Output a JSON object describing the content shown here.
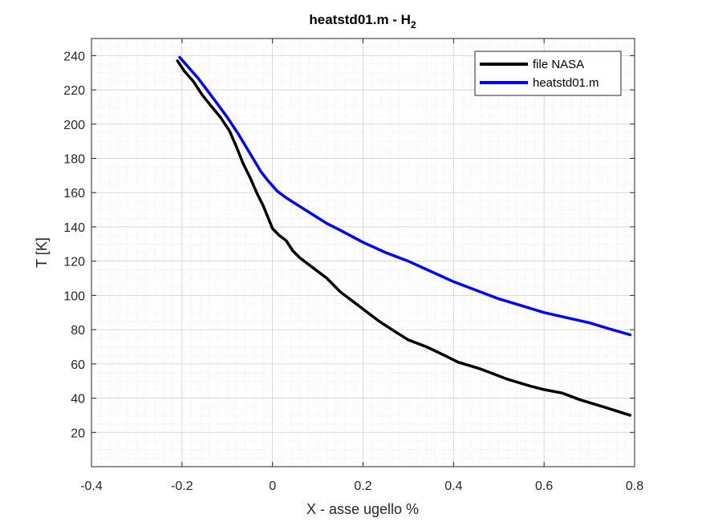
{
  "chart_data": {
    "type": "line",
    "title": "heatstd01.m - H",
    "title_subscript": "2",
    "xlabel": "X - asse ugello %",
    "ylabel": "T [K]",
    "xlim": [
      -0.4,
      0.8
    ],
    "ylim": [
      0,
      250
    ],
    "xticks": [
      -0.4,
      -0.2,
      0,
      0.2,
      0.4,
      0.6,
      0.8
    ],
    "xtick_labels": [
      "-0.4",
      "-0.2",
      "0",
      "0.2",
      "0.4",
      "0.6",
      "0.8"
    ],
    "yticks": [
      20,
      40,
      60,
      80,
      100,
      120,
      140,
      160,
      180,
      200,
      220,
      240
    ],
    "ytick_labels": [
      "20",
      "40",
      "60",
      "80",
      "100",
      "120",
      "140",
      "160",
      "180",
      "200",
      "220",
      "240"
    ],
    "grid": true,
    "minor_grid": true,
    "legend_position": "top-right",
    "series": [
      {
        "name": "file NASA",
        "color": "#000000",
        "x": [
          -0.21,
          -0.195,
          -0.175,
          -0.155,
          -0.14,
          -0.115,
          -0.095,
          -0.08,
          -0.065,
          -0.05,
          -0.035,
          -0.02,
          0.0,
          0.015,
          0.03,
          0.045,
          0.06,
          0.09,
          0.12,
          0.15,
          0.19,
          0.235,
          0.27,
          0.3,
          0.34,
          0.38,
          0.41,
          0.46,
          0.52,
          0.57,
          0.6,
          0.64,
          0.68,
          0.73,
          0.79
        ],
        "y": [
          237,
          231,
          225,
          217,
          212,
          204,
          196,
          187,
          177,
          169,
          160,
          152,
          139,
          135,
          132,
          126,
          122,
          116,
          110,
          102,
          94,
          85,
          79,
          74,
          70,
          65,
          61,
          57,
          51,
          47,
          45,
          43,
          39,
          35,
          30
        ]
      },
      {
        "name": "heatstd01.m",
        "color": "#0000ff",
        "x": [
          -0.205,
          -0.185,
          -0.165,
          -0.145,
          -0.125,
          -0.1,
          -0.075,
          -0.05,
          -0.025,
          -0.01,
          0.0,
          0.01,
          0.03,
          0.06,
          0.09,
          0.12,
          0.15,
          0.2,
          0.25,
          0.3,
          0.35,
          0.4,
          0.45,
          0.5,
          0.55,
          0.6,
          0.65,
          0.7,
          0.75,
          0.79
        ],
        "y": [
          239,
          233,
          227,
          220,
          213,
          204,
          194,
          183,
          172,
          167,
          164,
          161,
          157,
          152,
          147,
          142,
          138,
          131,
          125,
          120,
          114,
          108,
          103,
          98,
          94,
          90,
          87,
          84,
          80,
          77
        ]
      }
    ]
  }
}
